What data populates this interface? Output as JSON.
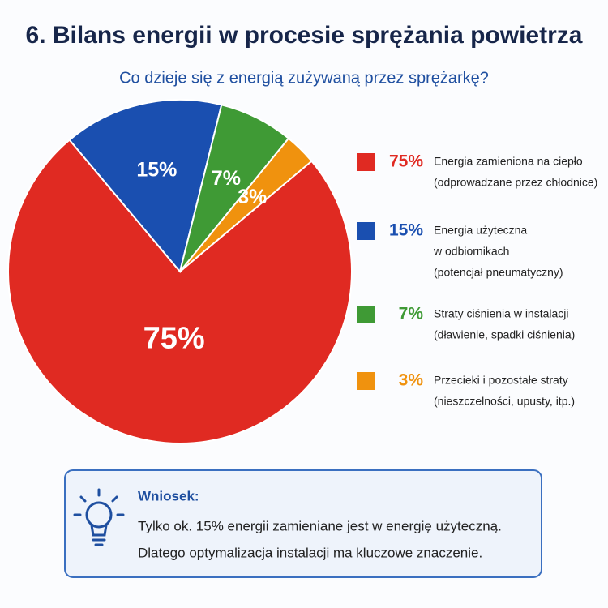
{
  "chart_data": {
    "type": "pie",
    "title": "6. Bilans energii w procesie sprężania powietrza",
    "subtitle": "Co dzieje się z energią zużywaną przez sprężarkę?",
    "values": [
      75,
      15,
      7,
      3
    ],
    "value_labels": [
      "75%",
      "15%",
      "7%",
      "3%"
    ],
    "colors": [
      "#e02a22",
      "#1a4fb0",
      "#3f9a35",
      "#f0920e"
    ],
    "legend": [
      [
        "Energia zamieniona na ciepło",
        "(odprowadzane przez chłodnice)"
      ],
      [
        "Energia użyteczna",
        "w odbiornikach",
        "(potencjał pneumatyczny)"
      ],
      [
        "Straty ciśnienia w instalacji",
        "(dławienie, spadki ciśnienia)"
      ],
      [
        "Przecieki i pozostałe straty",
        "(nieszczelności, upusty, itp.)"
      ]
    ]
  },
  "conclusion": {
    "title": "Wniosek:",
    "lines": [
      "Tylko ok. 15% energii zamieniane jest w energię użyteczną.",
      "Dlatego optymalizacja instalacji ma kluczowe znaczenie."
    ]
  }
}
